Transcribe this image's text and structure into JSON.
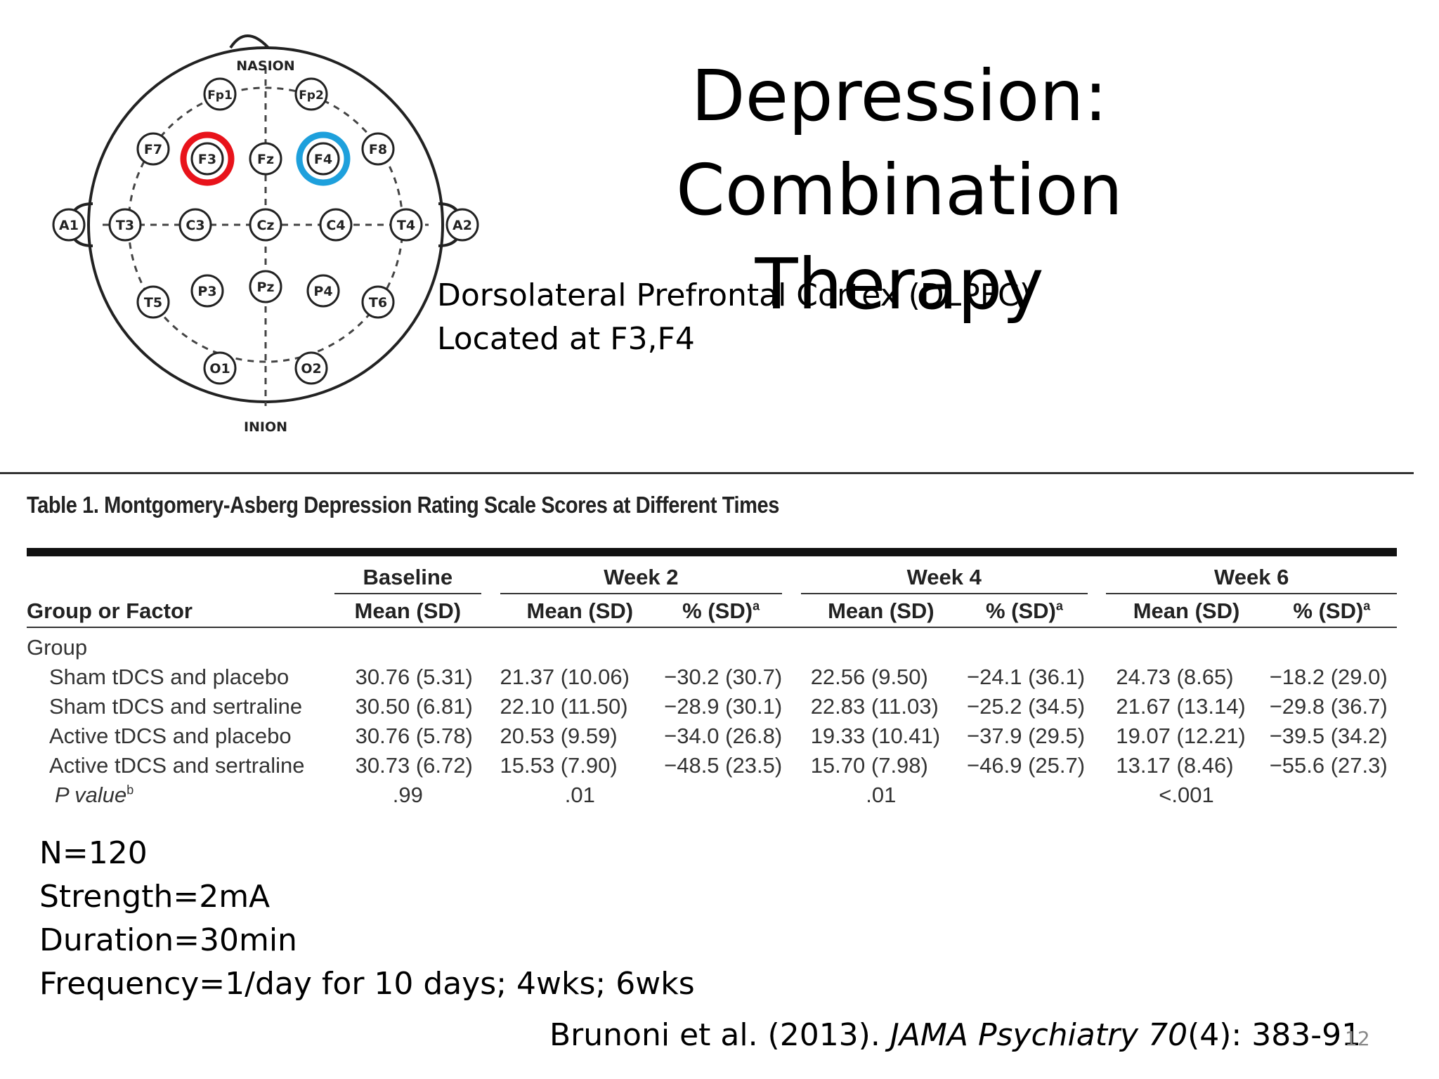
{
  "slide": {
    "title_line1": "Depression: Combination",
    "title_line2": "Therapy",
    "dlpfc_line1": "Dorsolateral Prefrontal Cortex (DLPFC)",
    "dlpfc_line2": "Located at F3,F4",
    "page_number": "12"
  },
  "eeg": {
    "nasion": "NASION",
    "inion": "INION",
    "electrodes": [
      "Fp1",
      "Fp2",
      "F7",
      "F3",
      "Fz",
      "F4",
      "F8",
      "A1",
      "T3",
      "C3",
      "Cz",
      "C4",
      "T4",
      "A2",
      "T5",
      "P3",
      "Pz",
      "P4",
      "T6",
      "O1",
      "O2"
    ],
    "highlight_colors": {
      "F3": "#e8131b",
      "F4": "#1ea0dc"
    }
  },
  "table": {
    "title": "Table 1. Montgomery-Asberg Depression Rating Scale Scores at Different Times",
    "col_group": "Group or Factor",
    "groups": [
      "Baseline",
      "Week 2",
      "Week 4",
      "Week 6"
    ],
    "sub_mean": "Mean (SD)",
    "sub_pct": "% (SD)",
    "sup_a": "a",
    "group_label": "Group",
    "rows": [
      {
        "label": "Sham tDCS and placebo",
        "cells": [
          "30.76 (5.31)",
          "21.37 (10.06)",
          "−30.2 (30.7)",
          "22.56 (9.50)",
          "−24.1 (36.1)",
          "24.73 (8.65)",
          "−18.2 (29.0)"
        ]
      },
      {
        "label": "Sham tDCS and sertraline",
        "cells": [
          "30.50 (6.81)",
          "22.10 (11.50)",
          "−28.9 (30.1)",
          "22.83 (11.03)",
          "−25.2 (34.5)",
          "21.67 (13.14)",
          "−29.8 (36.7)"
        ]
      },
      {
        "label": "Active tDCS and placebo",
        "cells": [
          "30.76 (5.78)",
          "20.53 (9.59)",
          "−34.0 (26.8)",
          "19.33 (10.41)",
          "−37.9 (29.5)",
          "19.07 (12.21)",
          "−39.5 (34.2)"
        ]
      },
      {
        "label": "Active tDCS and sertraline",
        "cells": [
          "30.73 (6.72)",
          "15.53 (7.90)",
          "−48.5 (23.5)",
          "15.70 (7.98)",
          "−46.9 (25.7)",
          "13.17 (8.46)",
          "−55.6 (27.3)"
        ]
      }
    ],
    "pvalue_label": "P value",
    "sup_b": "b",
    "pvalues": [
      ".99",
      ".01",
      ".01",
      "<.001"
    ]
  },
  "notes": {
    "n": "N=120",
    "strength": "Strength=2mA",
    "duration": "Duration=30min",
    "frequency": "Frequency=1/day for 10 days; 4wks; 6wks"
  },
  "citation": {
    "pre": "Brunoni et al. (2013). ",
    "journal": "JAMA Psychiatry 70",
    "post": "(4): 383-91"
  }
}
